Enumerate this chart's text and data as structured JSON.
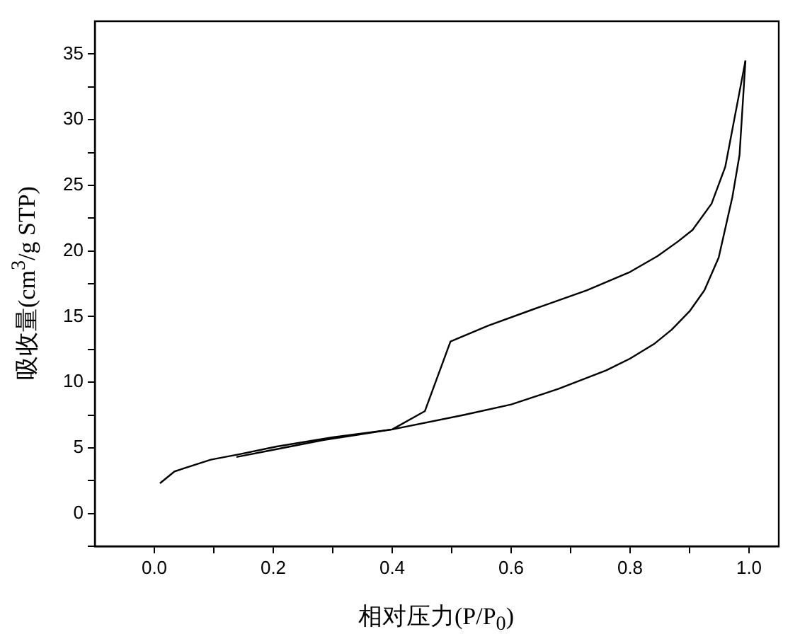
{
  "chart_data": {
    "type": "line",
    "xlabel": "相对压力(P/P$_{0}$)",
    "ylabel": "吸收量(cm$^{3}$/g STP)",
    "xlim": [
      -0.1,
      1.05
    ],
    "ylim": [
      -2.5,
      37.5
    ],
    "xticks": [
      {
        "value": 0,
        "label": "0.0"
      },
      {
        "value": 0.1,
        "label": null
      },
      0.2,
      {
        "value": 0.3,
        "label": null
      },
      0.4,
      {
        "value": 0.5,
        "label": null
      },
      0.6,
      {
        "value": 0.7,
        "label": null
      },
      0.8,
      {
        "value": 0.9,
        "label": null
      },
      {
        "value": 1,
        "label": "1.0"
      }
    ],
    "yticks": [
      {
        "value": -2.5,
        "label": null
      },
      0,
      {
        "value": 2.5,
        "label": null
      },
      5,
      {
        "value": 7.5,
        "label": null
      },
      10,
      {
        "value": 12.5,
        "label": null
      },
      15,
      {
        "value": 17.5,
        "label": null
      },
      20,
      {
        "value": 22.5,
        "label": null
      },
      25,
      {
        "value": 27.5,
        "label": null
      },
      30,
      {
        "value": 32.5,
        "label": null
      },
      35
    ],
    "grid": false,
    "legend": false,
    "marker": "none",
    "line_style": "solid",
    "series": [
      {
        "color": "#000000",
        "x": [
          0.0095,
          0.034,
          0.095,
          0.142,
          0.206,
          0.3,
          0.4,
          0.52,
          0.6,
          0.68,
          0.76,
          0.8,
          0.84,
          0.87,
          0.9,
          0.925,
          0.949,
          0.972,
          0.984,
          0.994
        ],
        "values": [
          2.3,
          3.2,
          4.1,
          4.5,
          5.1,
          5.8,
          6.4,
          7.5,
          8.3,
          9.5,
          10.9,
          11.8,
          12.9,
          14,
          15.4,
          17,
          19.5,
          24.1,
          27.3,
          34.5
        ]
      },
      {
        "color": "#000000",
        "x": [
          0.994,
          0.96,
          0.937,
          0.905,
          0.88,
          0.846,
          0.8,
          0.727,
          0.64,
          0.561,
          0.498,
          0.455,
          0.4,
          0.285,
          0.206,
          0.138
        ],
        "values": [
          34.5,
          26.4,
          23.6,
          21.6,
          20.7,
          19.6,
          18.4,
          17,
          15.6,
          14.3,
          13.1,
          7.8,
          6.4,
          5.6,
          4.9,
          4.3
        ]
      }
    ]
  }
}
